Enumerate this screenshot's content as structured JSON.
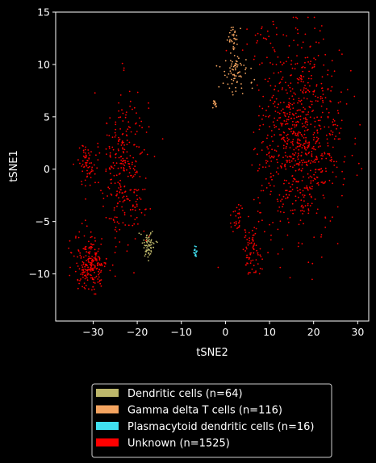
{
  "chart_data": {
    "type": "scatter",
    "xlabel": "tSNE2",
    "ylabel": "tSNE1",
    "xlim": [
      -38.5,
      32.5
    ],
    "ylim": [
      -14.5,
      15
    ],
    "x_ticks": [
      -30,
      -20,
      -10,
      0,
      10,
      20,
      30
    ],
    "y_ticks": [
      -10,
      -5,
      0,
      5,
      10,
      15
    ],
    "x_tick_labels": [
      "−30",
      "−20",
      "−10",
      "0",
      "10",
      "20",
      "30"
    ],
    "y_tick_labels": [
      "−10",
      "−5",
      "0",
      "5",
      "10",
      "15"
    ],
    "grid": false,
    "background": "#000000",
    "legend": {
      "placement": "bottom-center",
      "entries": [
        {
          "label": "Dendritic cells (n=64)",
          "color": "#bdb76b"
        },
        {
          "label": "Gamma delta T cells (n=116)",
          "color": "#f4a460"
        },
        {
          "label": "Plasmacytoid dendritic cells (n=16)",
          "color": "#40e0f0"
        },
        {
          "label": "Unknown (n=1525)",
          "color": "#ff0000"
        }
      ]
    },
    "series": [
      {
        "name": "Unknown (n=1525)",
        "color": "#ff0000",
        "clusters": [
          {
            "n": 300,
            "center": [
              -23,
              0
            ],
            "spread": [
              3.2,
              4.4
            ]
          },
          {
            "n": 220,
            "center": [
              -30.5,
              -9
            ],
            "spread": [
              2.2,
              1.6
            ]
          },
          {
            "n": 60,
            "center": [
              -31.5,
              0.5
            ],
            "spread": [
              1.2,
              1.2
            ]
          },
          {
            "n": 70,
            "center": [
              6,
              -7.8
            ],
            "spread": [
              1.3,
              1.3
            ]
          },
          {
            "n": 30,
            "center": [
              2.5,
              -4.8
            ],
            "spread": [
              1.0,
              1.0
            ]
          },
          {
            "n": 820,
            "center": [
              17,
              3
            ],
            "spread": [
              5.6,
              5.2
            ]
          },
          {
            "n": 25,
            "center": [
              9,
              12
            ],
            "spread": [
              2.5,
              0.9
            ]
          }
        ]
      },
      {
        "name": "Gamma delta T cells (n=116)",
        "color": "#f4a460",
        "clusters": [
          {
            "n": 70,
            "center": [
              2,
              9.2
            ],
            "spread": [
              1.8,
              1.2
            ]
          },
          {
            "n": 30,
            "center": [
              1.8,
              12.6
            ],
            "spread": [
              0.6,
              0.7
            ]
          },
          {
            "n": 12,
            "center": [
              -2.5,
              6.2
            ],
            "spread": [
              0.4,
              0.3
            ]
          },
          {
            "n": 4,
            "center": [
              6,
              8.5
            ],
            "spread": [
              0.6,
              0.5
            ]
          }
        ]
      },
      {
        "name": "Dendritic cells (n=64)",
        "color": "#bdb76b",
        "clusters": [
          {
            "n": 64,
            "center": [
              -17.5,
              -7.2
            ],
            "spread": [
              0.9,
              0.8
            ]
          }
        ]
      },
      {
        "name": "Plasmacytoid dendritic cells (n=16)",
        "color": "#40e0f0",
        "clusters": [
          {
            "n": 16,
            "center": [
              -6.8,
              -8.0
            ],
            "spread": [
              0.25,
              0.3
            ]
          }
        ]
      }
    ]
  }
}
